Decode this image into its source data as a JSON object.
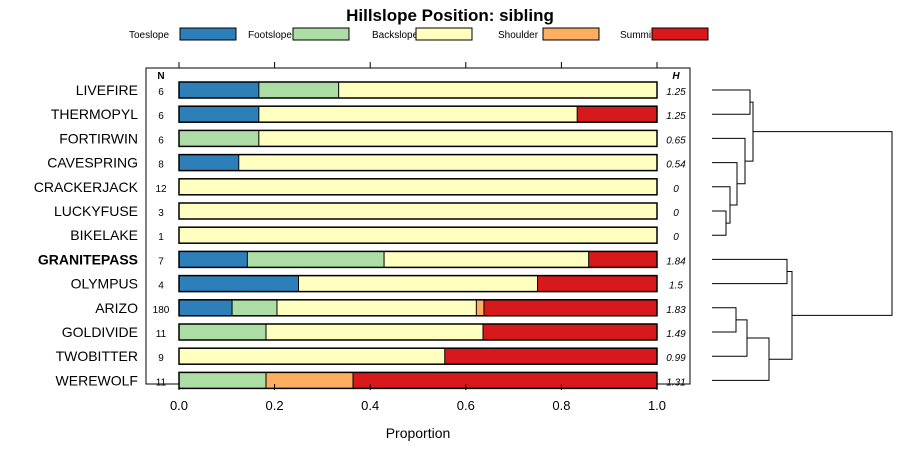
{
  "chart_data": {
    "type": "bar",
    "orientation": "horizontal-stacked",
    "title": "Hillslope Position: sibling",
    "xlabel": "Proportion",
    "xlim": [
      0,
      1
    ],
    "xticks": [
      "0.0",
      "0.2",
      "0.4",
      "0.6",
      "0.8",
      "1.0"
    ],
    "legend_position": "top",
    "n_header": "N",
    "h_header": "H",
    "series": [
      {
        "name": "Toeslope",
        "color": "#2c7fb8"
      },
      {
        "name": "Footslope",
        "color": "#abdda4"
      },
      {
        "name": "Backslope",
        "color": "#ffffbf"
      },
      {
        "name": "Shoulder",
        "color": "#fdae61"
      },
      {
        "name": "Summit",
        "color": "#d7191c"
      }
    ],
    "rows": [
      {
        "label": "LIVEFIRE",
        "n": "6",
        "h": "1.25",
        "bold": false,
        "values": [
          0.167,
          0.167,
          0.666,
          0,
          0
        ]
      },
      {
        "label": "THERMOPYL",
        "n": "6",
        "h": "1.25",
        "bold": false,
        "values": [
          0.167,
          0,
          0.666,
          0,
          0.167
        ]
      },
      {
        "label": "FORTIRWIN",
        "n": "6",
        "h": "0.65",
        "bold": false,
        "values": [
          0,
          0.167,
          0.833,
          0,
          0
        ]
      },
      {
        "label": "CAVESPRING",
        "n": "8",
        "h": "0.54",
        "bold": false,
        "values": [
          0.125,
          0,
          0.875,
          0,
          0
        ]
      },
      {
        "label": "CRACKERJACK",
        "n": "12",
        "h": "0",
        "bold": false,
        "values": [
          0,
          0,
          1,
          0,
          0
        ]
      },
      {
        "label": "LUCKYFUSE",
        "n": "3",
        "h": "0",
        "bold": false,
        "values": [
          0,
          0,
          1,
          0,
          0
        ]
      },
      {
        "label": "BIKELAKE",
        "n": "1",
        "h": "0",
        "bold": false,
        "values": [
          0,
          0,
          1,
          0,
          0
        ]
      },
      {
        "label": "GRANITEPASS",
        "n": "7",
        "h": "1.84",
        "bold": true,
        "values": [
          0.143,
          0.286,
          0.428,
          0,
          0.143
        ]
      },
      {
        "label": "OLYMPUS",
        "n": "4",
        "h": "1.5",
        "bold": false,
        "values": [
          0.25,
          0,
          0.5,
          0,
          0.25
        ]
      },
      {
        "label": "ARIZO",
        "n": "180",
        "h": "1.83",
        "bold": false,
        "values": [
          0.111,
          0.094,
          0.417,
          0.016,
          0.362
        ]
      },
      {
        "label": "GOLDIVIDE",
        "n": "11",
        "h": "1.49",
        "bold": false,
        "values": [
          0,
          0.182,
          0.454,
          0,
          0.364
        ]
      },
      {
        "label": "TWOBITTER",
        "n": "9",
        "h": "0.99",
        "bold": false,
        "values": [
          0,
          0,
          0.556,
          0,
          0.444
        ]
      },
      {
        "label": "WEREWOLF",
        "n": "11",
        "h": "1.31",
        "bold": false,
        "values": [
          0,
          0.182,
          0,
          0.182,
          0.636
        ]
      }
    ]
  }
}
